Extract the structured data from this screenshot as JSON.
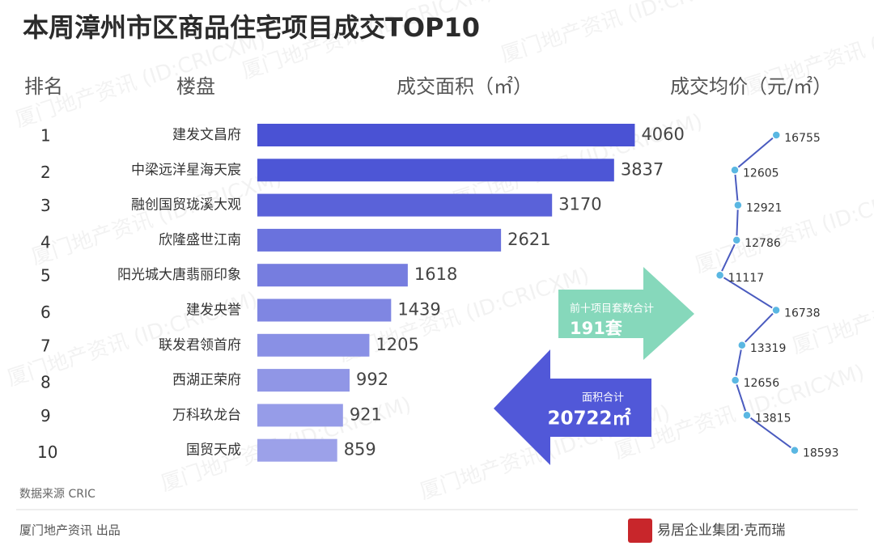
{
  "chart_data": {
    "type": "bar",
    "title": "本周漳州市区商品住宅项目成交TOP10",
    "headers": [
      "排名",
      "楼盘",
      "成交面积（㎡）",
      "成交均价（元/㎡）"
    ],
    "ranks": [
      1,
      2,
      3,
      4,
      5,
      6,
      7,
      8,
      9,
      10
    ],
    "categories": [
      "建发文昌府",
      "中梁远洋星海天宸",
      "融创国贸珑溪大观",
      "欣隆盛世江南",
      "阳光城大唐翡丽印象",
      "建发央誉",
      "联发君领首府",
      "西湖正荣府",
      "万科玖龙台",
      "国贸天成"
    ],
    "values": [
      4060,
      3837,
      3170,
      2621,
      1618,
      1439,
      1205,
      992,
      921,
      859
    ],
    "colors": [
      "#4a52d4",
      "#4d56d6",
      "#5a62d9",
      "#6a72dd",
      "#767ddf",
      "#7f86e2",
      "#8990e5",
      "#9096e6",
      "#969ce8",
      "#9ca1e9"
    ],
    "xlim": [
      0,
      4500
    ],
    "prices": [
      16755,
      12605,
      12921,
      12786,
      11117,
      16738,
      13319,
      12656,
      13815,
      18593
    ],
    "price_lim": [
      10500,
      19000
    ],
    "price_color": "#4a5bbf",
    "units_total": {
      "label": "前十项目套数合计",
      "value": 191,
      "value_label": "191套",
      "color": "#86d8bb"
    },
    "area_total": {
      "label": "面积合计",
      "value": 20722,
      "value_label": "20722㎡",
      "color": "#5158d8"
    },
    "watermark": "厦门地产资讯 (ID:CRICXM)",
    "source": "数据来源  CRIC",
    "footer": "厦门地产资讯  出品",
    "brand": "易居企业集团·克而瑞"
  }
}
